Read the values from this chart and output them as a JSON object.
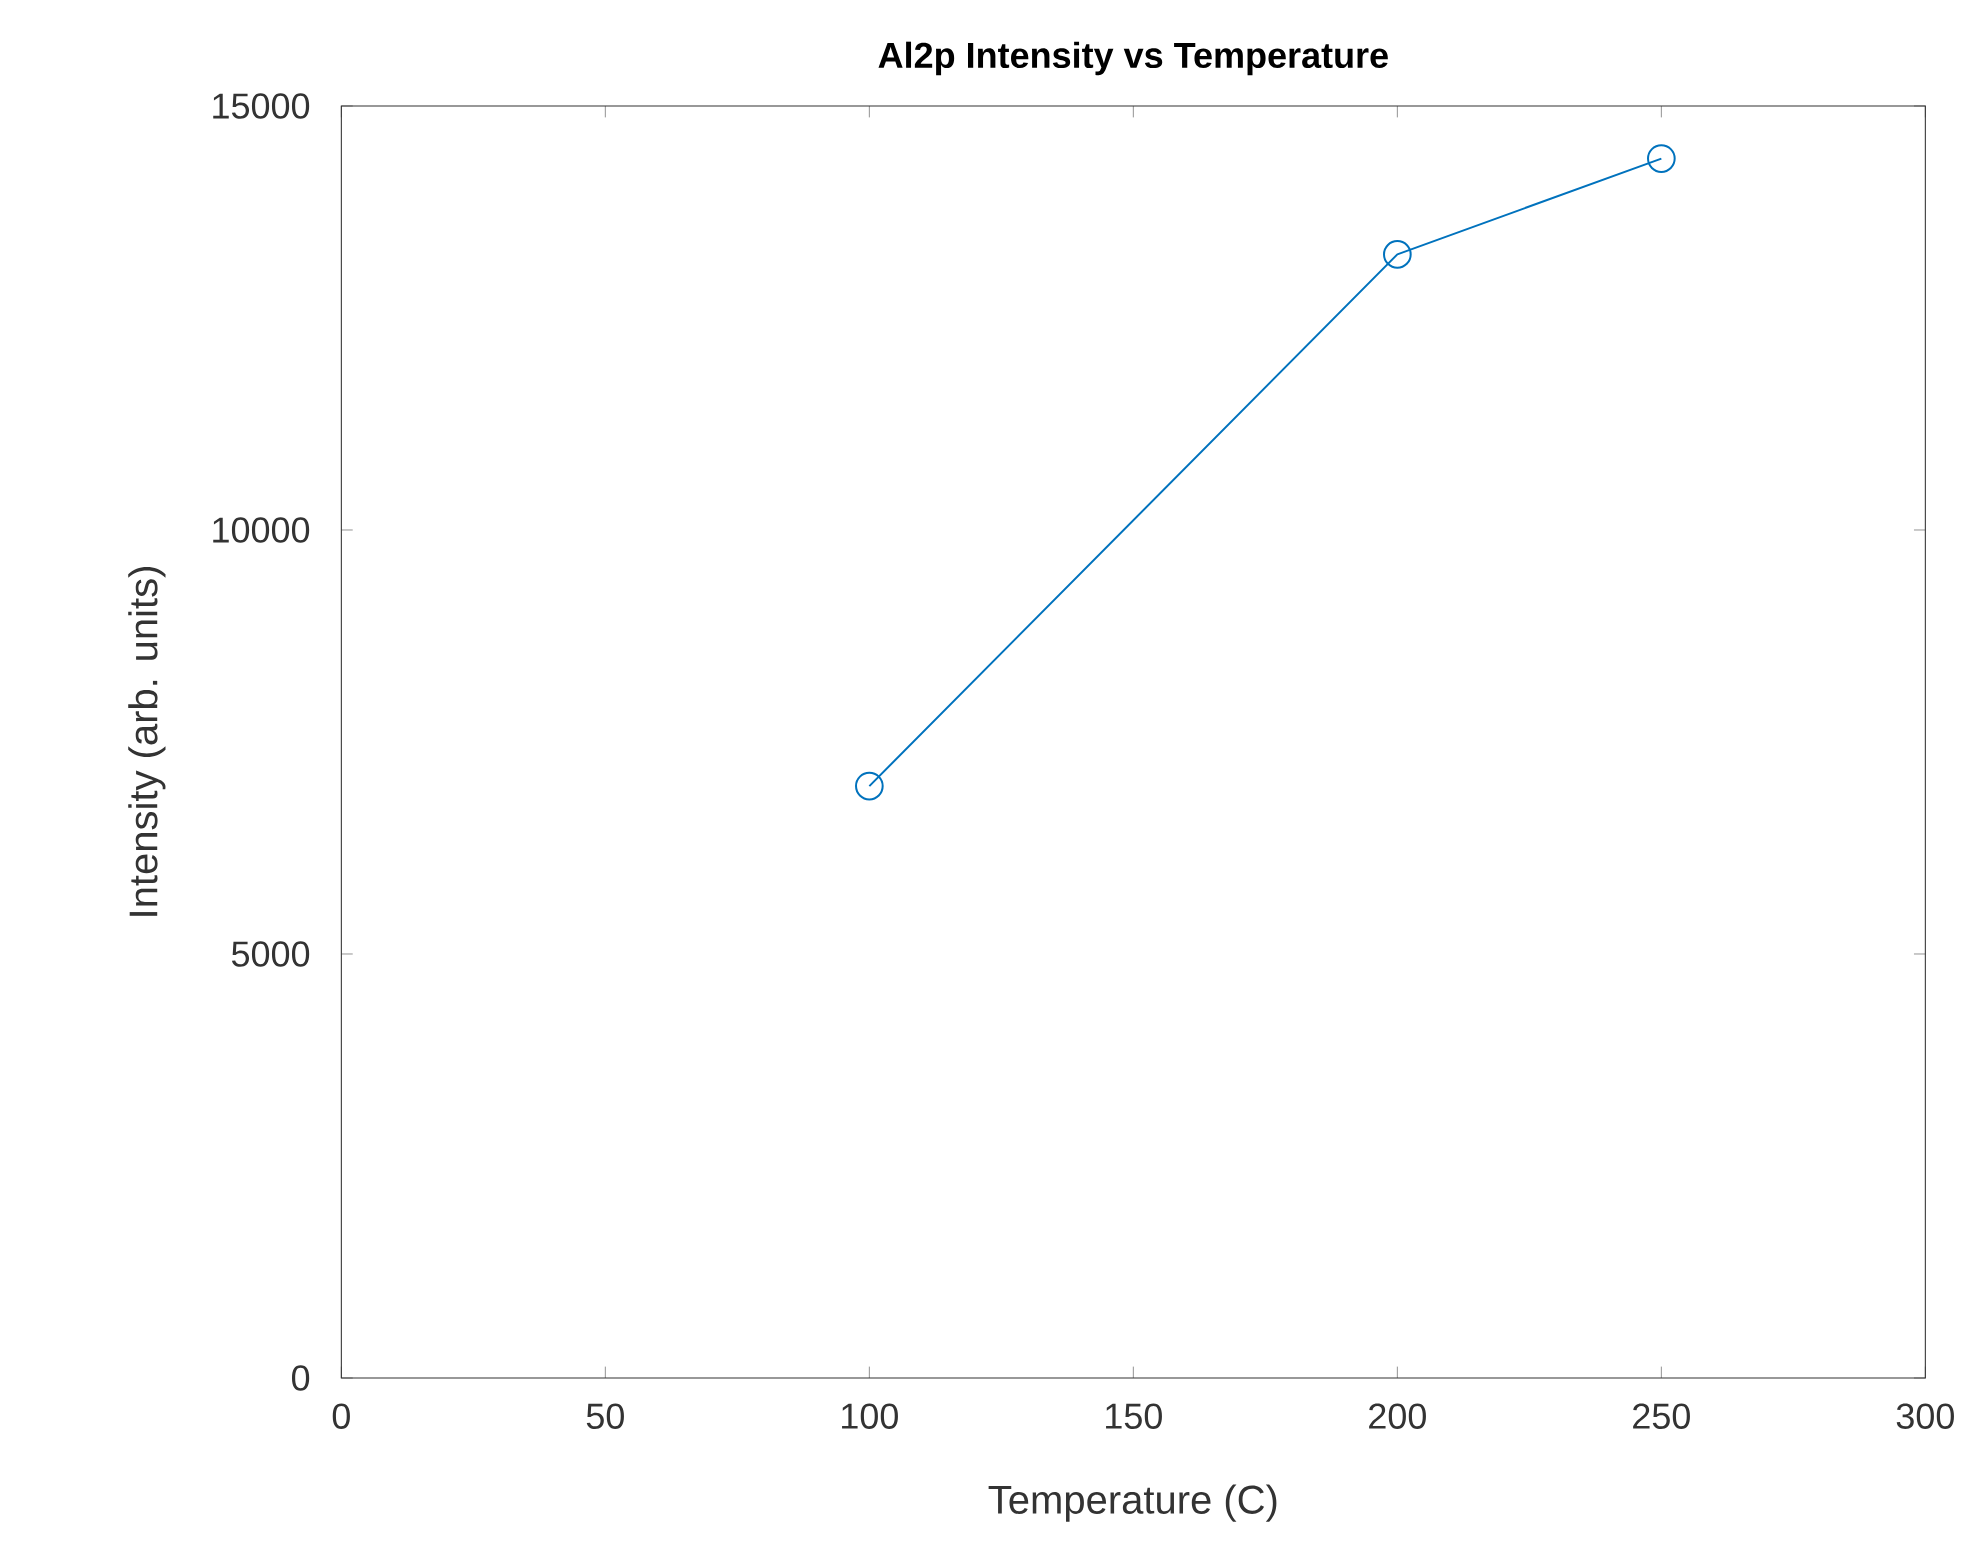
{
  "chart_data": {
    "type": "line",
    "title": "Al2p Intensity vs Temperature",
    "xlabel": "Temperature (C)",
    "ylabel": "Intensity (arb. units)",
    "x": [
      100,
      200,
      250
    ],
    "series": [
      {
        "color": "#0072bd",
        "values": [
          6980,
          13250,
          14380
        ]
      }
    ],
    "xlim": [
      0,
      300
    ],
    "xticks": [
      0,
      50,
      100,
      150,
      200,
      250,
      300
    ],
    "ylim": [
      0,
      15000
    ],
    "yticks": [
      0,
      5000,
      10000,
      15000
    ],
    "marker": "circle",
    "line_style": "solid",
    "grid": false
  }
}
